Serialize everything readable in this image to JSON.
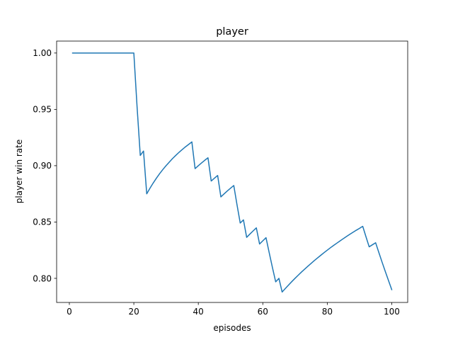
{
  "chart_data": {
    "type": "line",
    "title": "player",
    "xlabel": "episodes",
    "ylabel": "player win rate",
    "xlim": [
      -3.95,
      104.95
    ],
    "ylim": [
      0.7786,
      1.0106
    ],
    "xticks": [
      0,
      20,
      40,
      60,
      80,
      100
    ],
    "yticks": [
      0.8,
      0.85,
      0.9,
      0.95,
      1.0
    ],
    "xtick_labels": [
      "0",
      "20",
      "40",
      "60",
      "80",
      "100"
    ],
    "ytick_labels": [
      "0.80",
      "0.85",
      "0.90",
      "0.95",
      "1.00"
    ],
    "grid": false,
    "series": [
      {
        "color": "#1f77b4",
        "x": [
          1,
          2,
          3,
          4,
          5,
          6,
          7,
          8,
          9,
          10,
          11,
          12,
          13,
          14,
          15,
          16,
          17,
          18,
          19,
          20,
          21,
          22,
          23,
          24,
          25,
          26,
          27,
          28,
          29,
          30,
          31,
          32,
          33,
          34,
          35,
          36,
          37,
          38,
          39,
          40,
          41,
          42,
          43,
          44,
          45,
          46,
          47,
          48,
          49,
          50,
          51,
          52,
          53,
          54,
          55,
          56,
          57,
          58,
          59,
          60,
          61,
          62,
          63,
          64,
          65,
          66,
          67,
          68,
          69,
          70,
          71,
          72,
          73,
          74,
          75,
          76,
          77,
          78,
          79,
          80,
          81,
          82,
          83,
          84,
          85,
          86,
          87,
          88,
          89,
          90,
          91,
          92,
          93,
          94,
          95,
          96,
          97,
          98,
          99,
          100
        ],
        "y": [
          1.0,
          1.0,
          1.0,
          1.0,
          1.0,
          1.0,
          1.0,
          1.0,
          1.0,
          1.0,
          1.0,
          1.0,
          1.0,
          1.0,
          1.0,
          1.0,
          1.0,
          1.0,
          1.0,
          1.0,
          0.9524,
          0.9091,
          0.913,
          0.875,
          0.88,
          0.8846,
          0.8889,
          0.8929,
          0.8966,
          0.9,
          0.9032,
          0.9063,
          0.9091,
          0.9118,
          0.9143,
          0.9167,
          0.9189,
          0.9211,
          0.8974,
          0.9,
          0.9024,
          0.9048,
          0.907,
          0.8864,
          0.8889,
          0.8913,
          0.8723,
          0.875,
          0.8776,
          0.88,
          0.8824,
          0.8654,
          0.8491,
          0.8519,
          0.8364,
          0.8393,
          0.8421,
          0.8448,
          0.8305,
          0.8333,
          0.8361,
          0.8226,
          0.8095,
          0.7969,
          0.8,
          0.7879,
          0.791,
          0.7941,
          0.7971,
          0.8,
          0.8028,
          0.8056,
          0.8082,
          0.8108,
          0.8133,
          0.8158,
          0.8182,
          0.8205,
          0.8228,
          0.825,
          0.8272,
          0.8293,
          0.8313,
          0.8333,
          0.8353,
          0.8372,
          0.8391,
          0.8409,
          0.8427,
          0.8444,
          0.8462,
          0.837,
          0.828,
          0.8298,
          0.8316,
          0.8229,
          0.8144,
          0.8061,
          0.798,
          0.79
        ]
      }
    ]
  }
}
